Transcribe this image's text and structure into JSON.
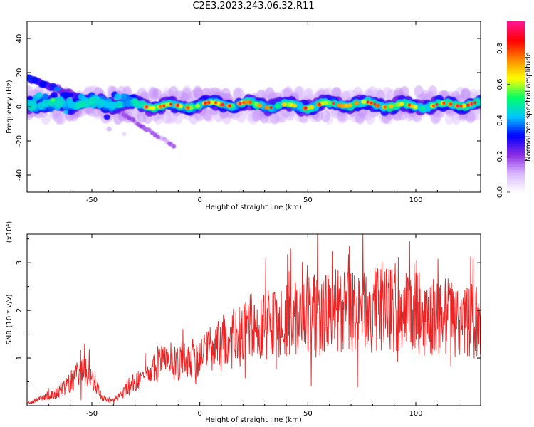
{
  "figure": {
    "title": "C2E3.2023.243.06.32.R11"
  },
  "chart_data": [
    {
      "type": "heatmap",
      "title": "C2E3.2023.243.06.32.R11",
      "xlabel": "Height of straight line (km)",
      "ylabel": "Frequency (Hz)",
      "xlim": [
        -80,
        130
      ],
      "ylim": [
        -50,
        50
      ],
      "xticks": [
        -50,
        0,
        50,
        100
      ],
      "yticks": [
        -40,
        -20,
        0,
        20,
        40
      ],
      "colorbar": {
        "label": "Normalized spectral amplitude",
        "range": [
          0.0,
          0.95
        ],
        "ticks": [
          0.0,
          0.2,
          0.4,
          0.6,
          0.8
        ],
        "tick_labels": [
          "0.0",
          "0.2",
          "0.4",
          "0.6",
          "0.8"
        ],
        "colormap": [
          "#ffffff",
          "#d9b8ff",
          "#8a2be2",
          "#0000ff",
          "#00c8ff",
          "#00ff66",
          "#ffff00",
          "#ff8800",
          "#ff0000",
          "#ff1493"
        ]
      },
      "features": [
        {
          "name": "main band",
          "x": [
            -80,
            130
          ],
          "frequency_center": 1,
          "frequency_halfwidth": 4
        },
        {
          "name": "upper branch",
          "x": [
            -80,
            -50
          ],
          "frequency": [
            17,
            3
          ]
        },
        {
          "name": "lower branch",
          "x": [
            -40,
            -12
          ],
          "frequency": [
            -1,
            -23
          ]
        }
      ]
    },
    {
      "type": "line",
      "title": "",
      "xlabel": "Height of straight line (km)",
      "ylabel": "SNR (10 * v/v)",
      "y_multiplier": "(x10⁴)",
      "xlim": [
        -80,
        130
      ],
      "ylim": [
        0,
        3.6
      ],
      "xticks": [
        -50,
        0,
        50,
        100
      ],
      "yticks": [
        1,
        2,
        3
      ],
      "series": [
        {
          "color": "#ee2222",
          "x": [
            -80,
            -75,
            -70,
            -65,
            -60,
            -55,
            -50,
            -47,
            -45,
            -40,
            -35,
            -30,
            -25,
            -20,
            -17,
            -15,
            -10,
            -5,
            0,
            5,
            10,
            15,
            20,
            25,
            30,
            35,
            40,
            45,
            50,
            55,
            60,
            65,
            70,
            75,
            80,
            85,
            90,
            95,
            100,
            105,
            110,
            115,
            120,
            125,
            130
          ],
          "y": [
            0.05,
            0.12,
            0.2,
            0.3,
            0.5,
            0.75,
            0.6,
            0.35,
            0.15,
            0.1,
            0.3,
            0.5,
            0.6,
            0.8,
            1.0,
            0.8,
            0.9,
            1.0,
            1.1,
            1.2,
            1.3,
            1.4,
            1.5,
            1.6,
            1.7,
            1.75,
            1.8,
            1.85,
            1.9,
            1.9,
            1.95,
            2.0,
            1.95,
            2.0,
            2.0,
            2.05,
            2.0,
            2.0,
            1.95,
            1.9,
            1.85,
            1.9,
            1.8,
            1.75,
            1.7
          ]
        }
      ]
    }
  ]
}
